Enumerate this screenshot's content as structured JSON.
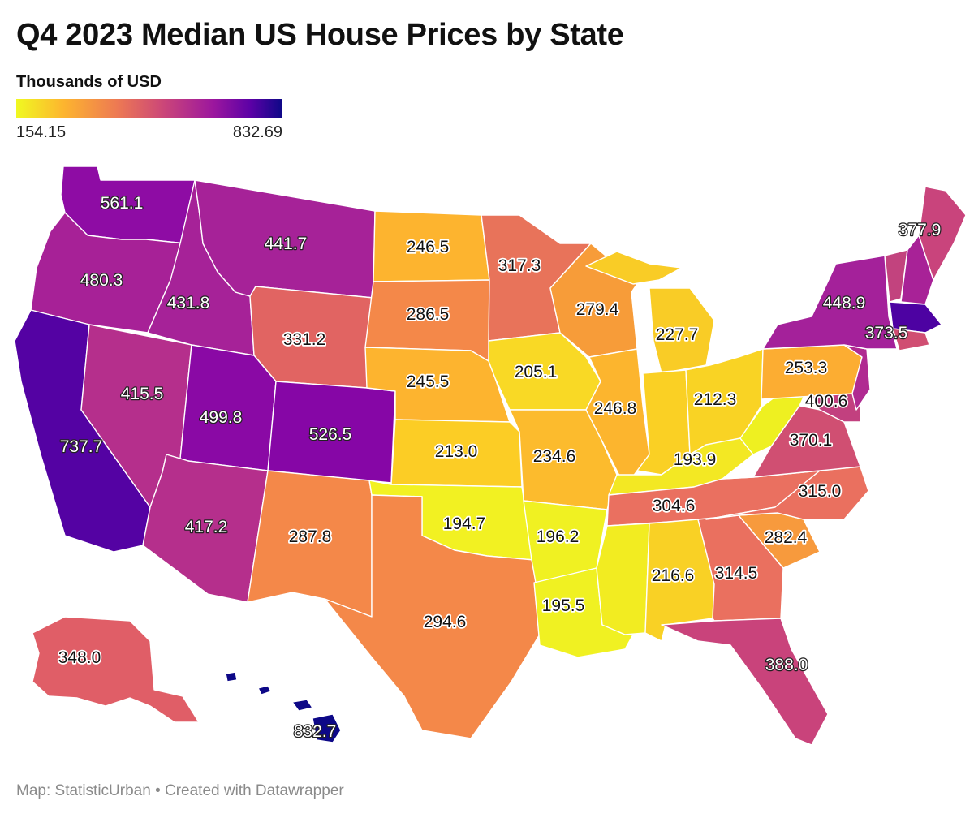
{
  "title": "Q4 2023 Median US House Prices by State",
  "legend": {
    "title": "Thousands of USD",
    "min": "154.15",
    "max": "832.69",
    "scale": [
      "#f0f921",
      "#fdb42f",
      "#ed7953",
      "#cc4778",
      "#9c179e",
      "#5c01a6",
      "#0d0887"
    ]
  },
  "footer": "Map: StatisticUrban • Created with Datawrapper",
  "states": {
    "WA": "561.1",
    "OR": "480.3",
    "CA": "737.7",
    "NV": "415.5",
    "ID": "431.8",
    "MT": "441.7",
    "WY": "331.2",
    "UT": "499.8",
    "CO": "526.5",
    "AZ": "417.2",
    "NM": "287.8",
    "ND": "246.5",
    "SD": "286.5",
    "NE": "245.5",
    "KS": "213.0",
    "OK": "194.7",
    "TX": "294.6",
    "MN": "317.3",
    "IA": "205.1",
    "MO": "234.6",
    "AR": "196.2",
    "LA": "195.5",
    "WI": "279.4",
    "IL": "246.8",
    "MI": "227.7",
    "IN": "",
    "OH": "212.3",
    "KY": "193.9",
    "TN": "304.6",
    "MS": "",
    "AL": "216.6",
    "GA": "314.5",
    "FL": "388.0",
    "SC": "282.4",
    "NC": "315.0",
    "VA": "370.1",
    "WV": "",
    "PA": "253.3",
    "NJ": "400.6",
    "NY": "448.9",
    "MA": "373.5",
    "ME": "377.9",
    "AK": "348.0",
    "HI": "832.7"
  }
}
